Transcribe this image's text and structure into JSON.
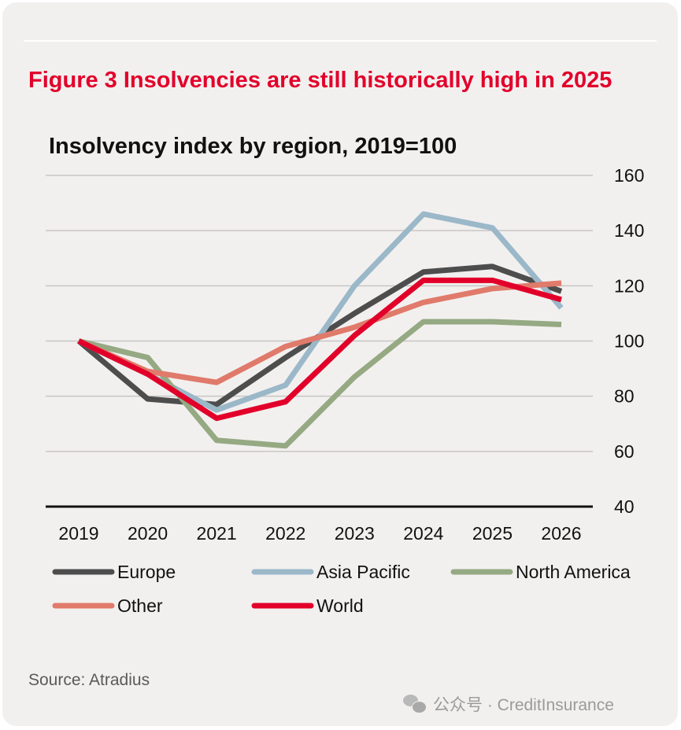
{
  "figure_title": "Figure 3 Insolvencies are still historically high in 2025",
  "source": "Source: Atradius",
  "watermark": {
    "icon": "wechat-icon",
    "text": "公众号 · CreditInsurance"
  },
  "colors": {
    "background": "#f2f0ef",
    "title": "#e2002a",
    "gridline": "#c8c6c5",
    "axis": "#111111"
  },
  "chart_data": {
    "type": "line",
    "title": "Insolvency index by region, 2019=100",
    "xlabel": "",
    "ylabel": "",
    "categories": [
      "2019",
      "2020",
      "2021",
      "2022",
      "2023",
      "2024",
      "2025",
      "2026"
    ],
    "ylim": [
      40,
      160
    ],
    "yticks": [
      "160",
      "140",
      "120",
      "100",
      "80",
      "60",
      "40"
    ],
    "ytick_values": [
      160,
      140,
      120,
      100,
      80,
      60,
      40
    ],
    "y_axis_side": "right",
    "grid": true,
    "legend_position": "bottom",
    "series": [
      {
        "name": "Europe",
        "color": "#4d4d4d",
        "values": [
          100,
          79,
          77,
          94,
          110,
          125,
          127,
          118
        ]
      },
      {
        "name": "Asia Pacific",
        "color": "#9bb8c9",
        "values": [
          100,
          88,
          75,
          84,
          120,
          146,
          141,
          112
        ]
      },
      {
        "name": "North America",
        "color": "#95a983",
        "values": [
          100,
          94,
          64,
          62,
          87,
          107,
          107,
          106
        ]
      },
      {
        "name": "Other",
        "color": "#e07a6b",
        "values": [
          100,
          89,
          85,
          98,
          105,
          114,
          119,
          121
        ]
      },
      {
        "name": "World",
        "color": "#e2002a",
        "values": [
          100,
          88,
          72,
          78,
          102,
          122,
          122,
          115
        ]
      }
    ]
  }
}
